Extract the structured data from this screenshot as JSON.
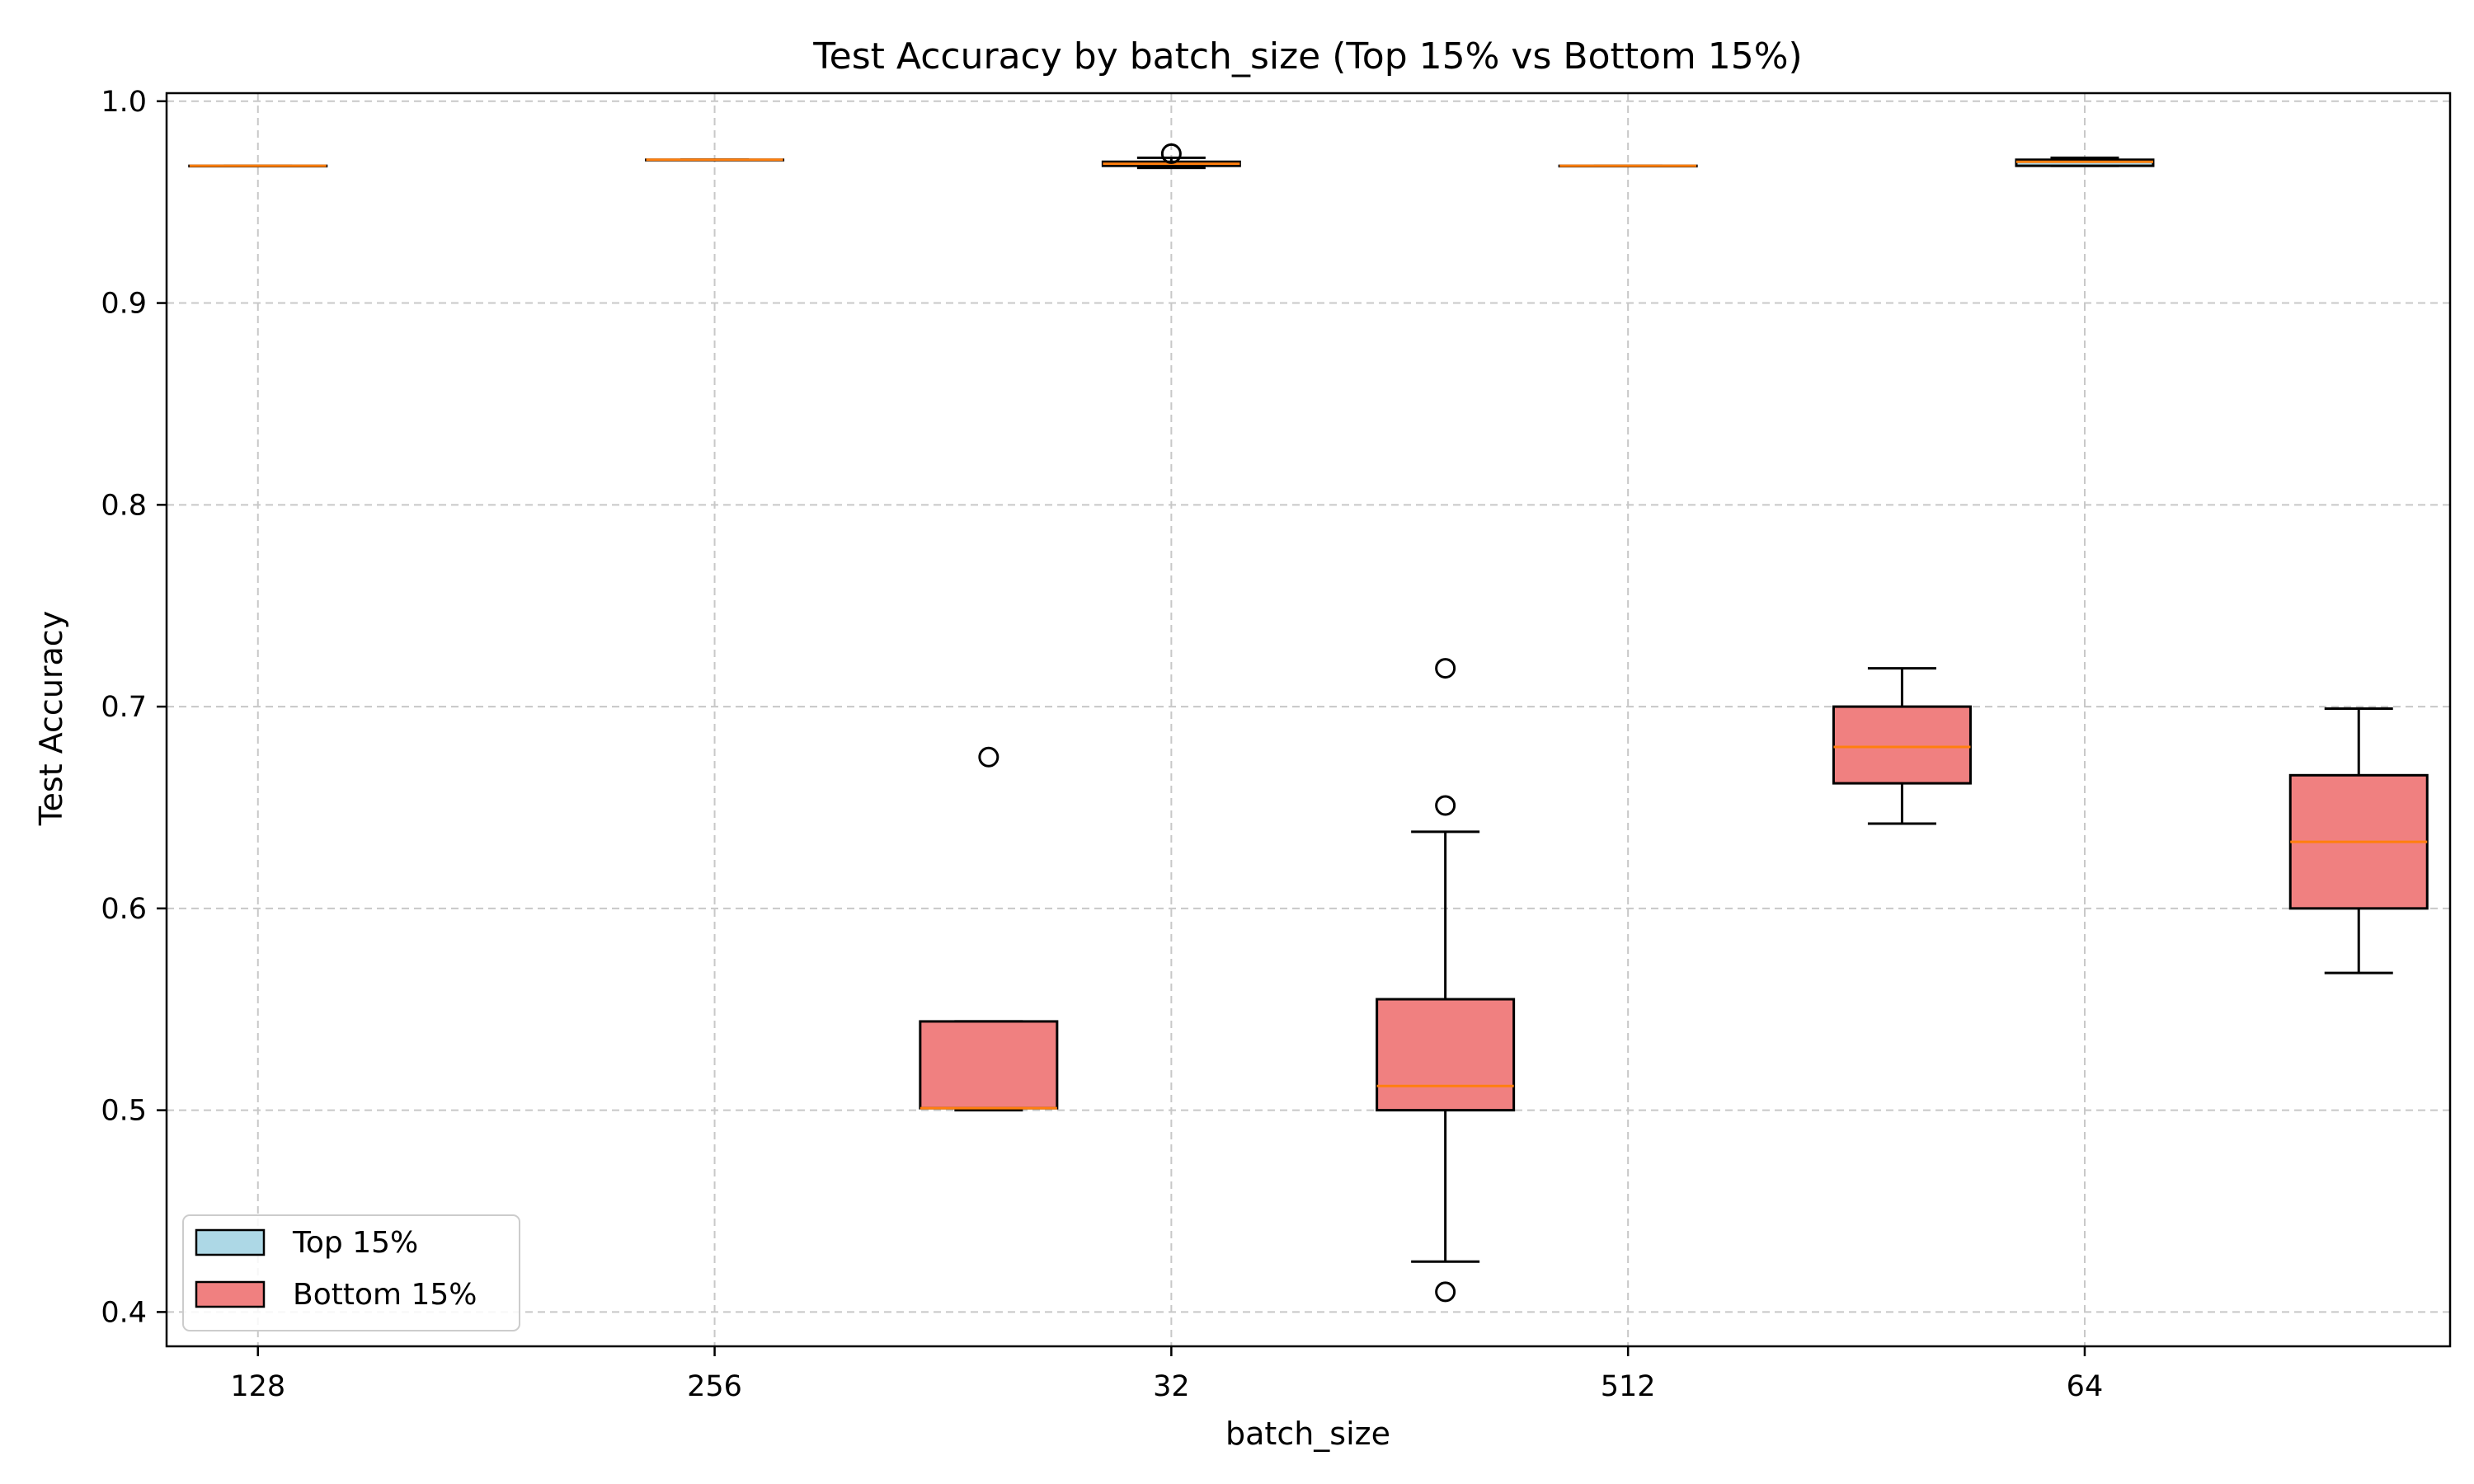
{
  "chart_data": {
    "type": "box",
    "title": "Test Accuracy by batch_size (Top 15% vs Bottom 15%)",
    "xlabel": "batch_size",
    "ylabel": "Test Accuracy",
    "categories": [
      "128",
      "256",
      "32",
      "512",
      "64"
    ],
    "ylim": [
      0.383,
      1.004
    ],
    "yticks": [
      0.4,
      0.5,
      0.6,
      0.7,
      0.8,
      0.9,
      1.0
    ],
    "ytick_labels": [
      "0.4",
      "0.5",
      "0.6",
      "0.7",
      "0.8",
      "0.9",
      "1.0"
    ],
    "grid": true,
    "legend_position": "lower-left",
    "series": [
      {
        "name": "Top 15%",
        "color": "#add8e6",
        "boxes": [
          {
            "category": "128",
            "whisker_low": 0.968,
            "q1": 0.968,
            "median": 0.968,
            "q3": 0.968,
            "whisker_high": 0.968,
            "outliers": []
          },
          {
            "category": "256",
            "whisker_low": 0.971,
            "q1": 0.971,
            "median": 0.971,
            "q3": 0.971,
            "whisker_high": 0.971,
            "outliers": []
          },
          {
            "category": "32",
            "whisker_low": 0.967,
            "q1": 0.968,
            "median": 0.969,
            "q3": 0.97,
            "whisker_high": 0.972,
            "outliers": [
              0.974
            ]
          },
          {
            "category": "512",
            "whisker_low": 0.968,
            "q1": 0.968,
            "median": 0.968,
            "q3": 0.968,
            "whisker_high": 0.968,
            "outliers": []
          },
          {
            "category": "64",
            "whisker_low": 0.968,
            "q1": 0.968,
            "median": 0.97,
            "q3": 0.971,
            "whisker_high": 0.972,
            "outliers": []
          }
        ]
      },
      {
        "name": "Bottom 15%",
        "color": "#f08080",
        "boxes": [
          {
            "category": "256",
            "whisker_low": 0.5,
            "q1": 0.501,
            "median": 0.501,
            "q3": 0.544,
            "whisker_high": 0.544,
            "outliers": [
              0.675
            ]
          },
          {
            "category": "32",
            "whisker_low": 0.425,
            "q1": 0.5,
            "median": 0.512,
            "q3": 0.555,
            "whisker_high": 0.638,
            "outliers": [
              0.719,
              0.651,
              0.41
            ]
          },
          {
            "category": "512",
            "whisker_low": 0.642,
            "q1": 0.662,
            "median": 0.68,
            "q3": 0.7,
            "whisker_high": 0.719,
            "outliers": []
          },
          {
            "category": "64",
            "whisker_low": 0.568,
            "q1": 0.6,
            "median": 0.633,
            "q3": 0.666,
            "whisker_high": 0.699,
            "outliers": []
          }
        ]
      }
    ],
    "median_color": "#ff7f0e",
    "grid_color": "#c8c8c8"
  }
}
